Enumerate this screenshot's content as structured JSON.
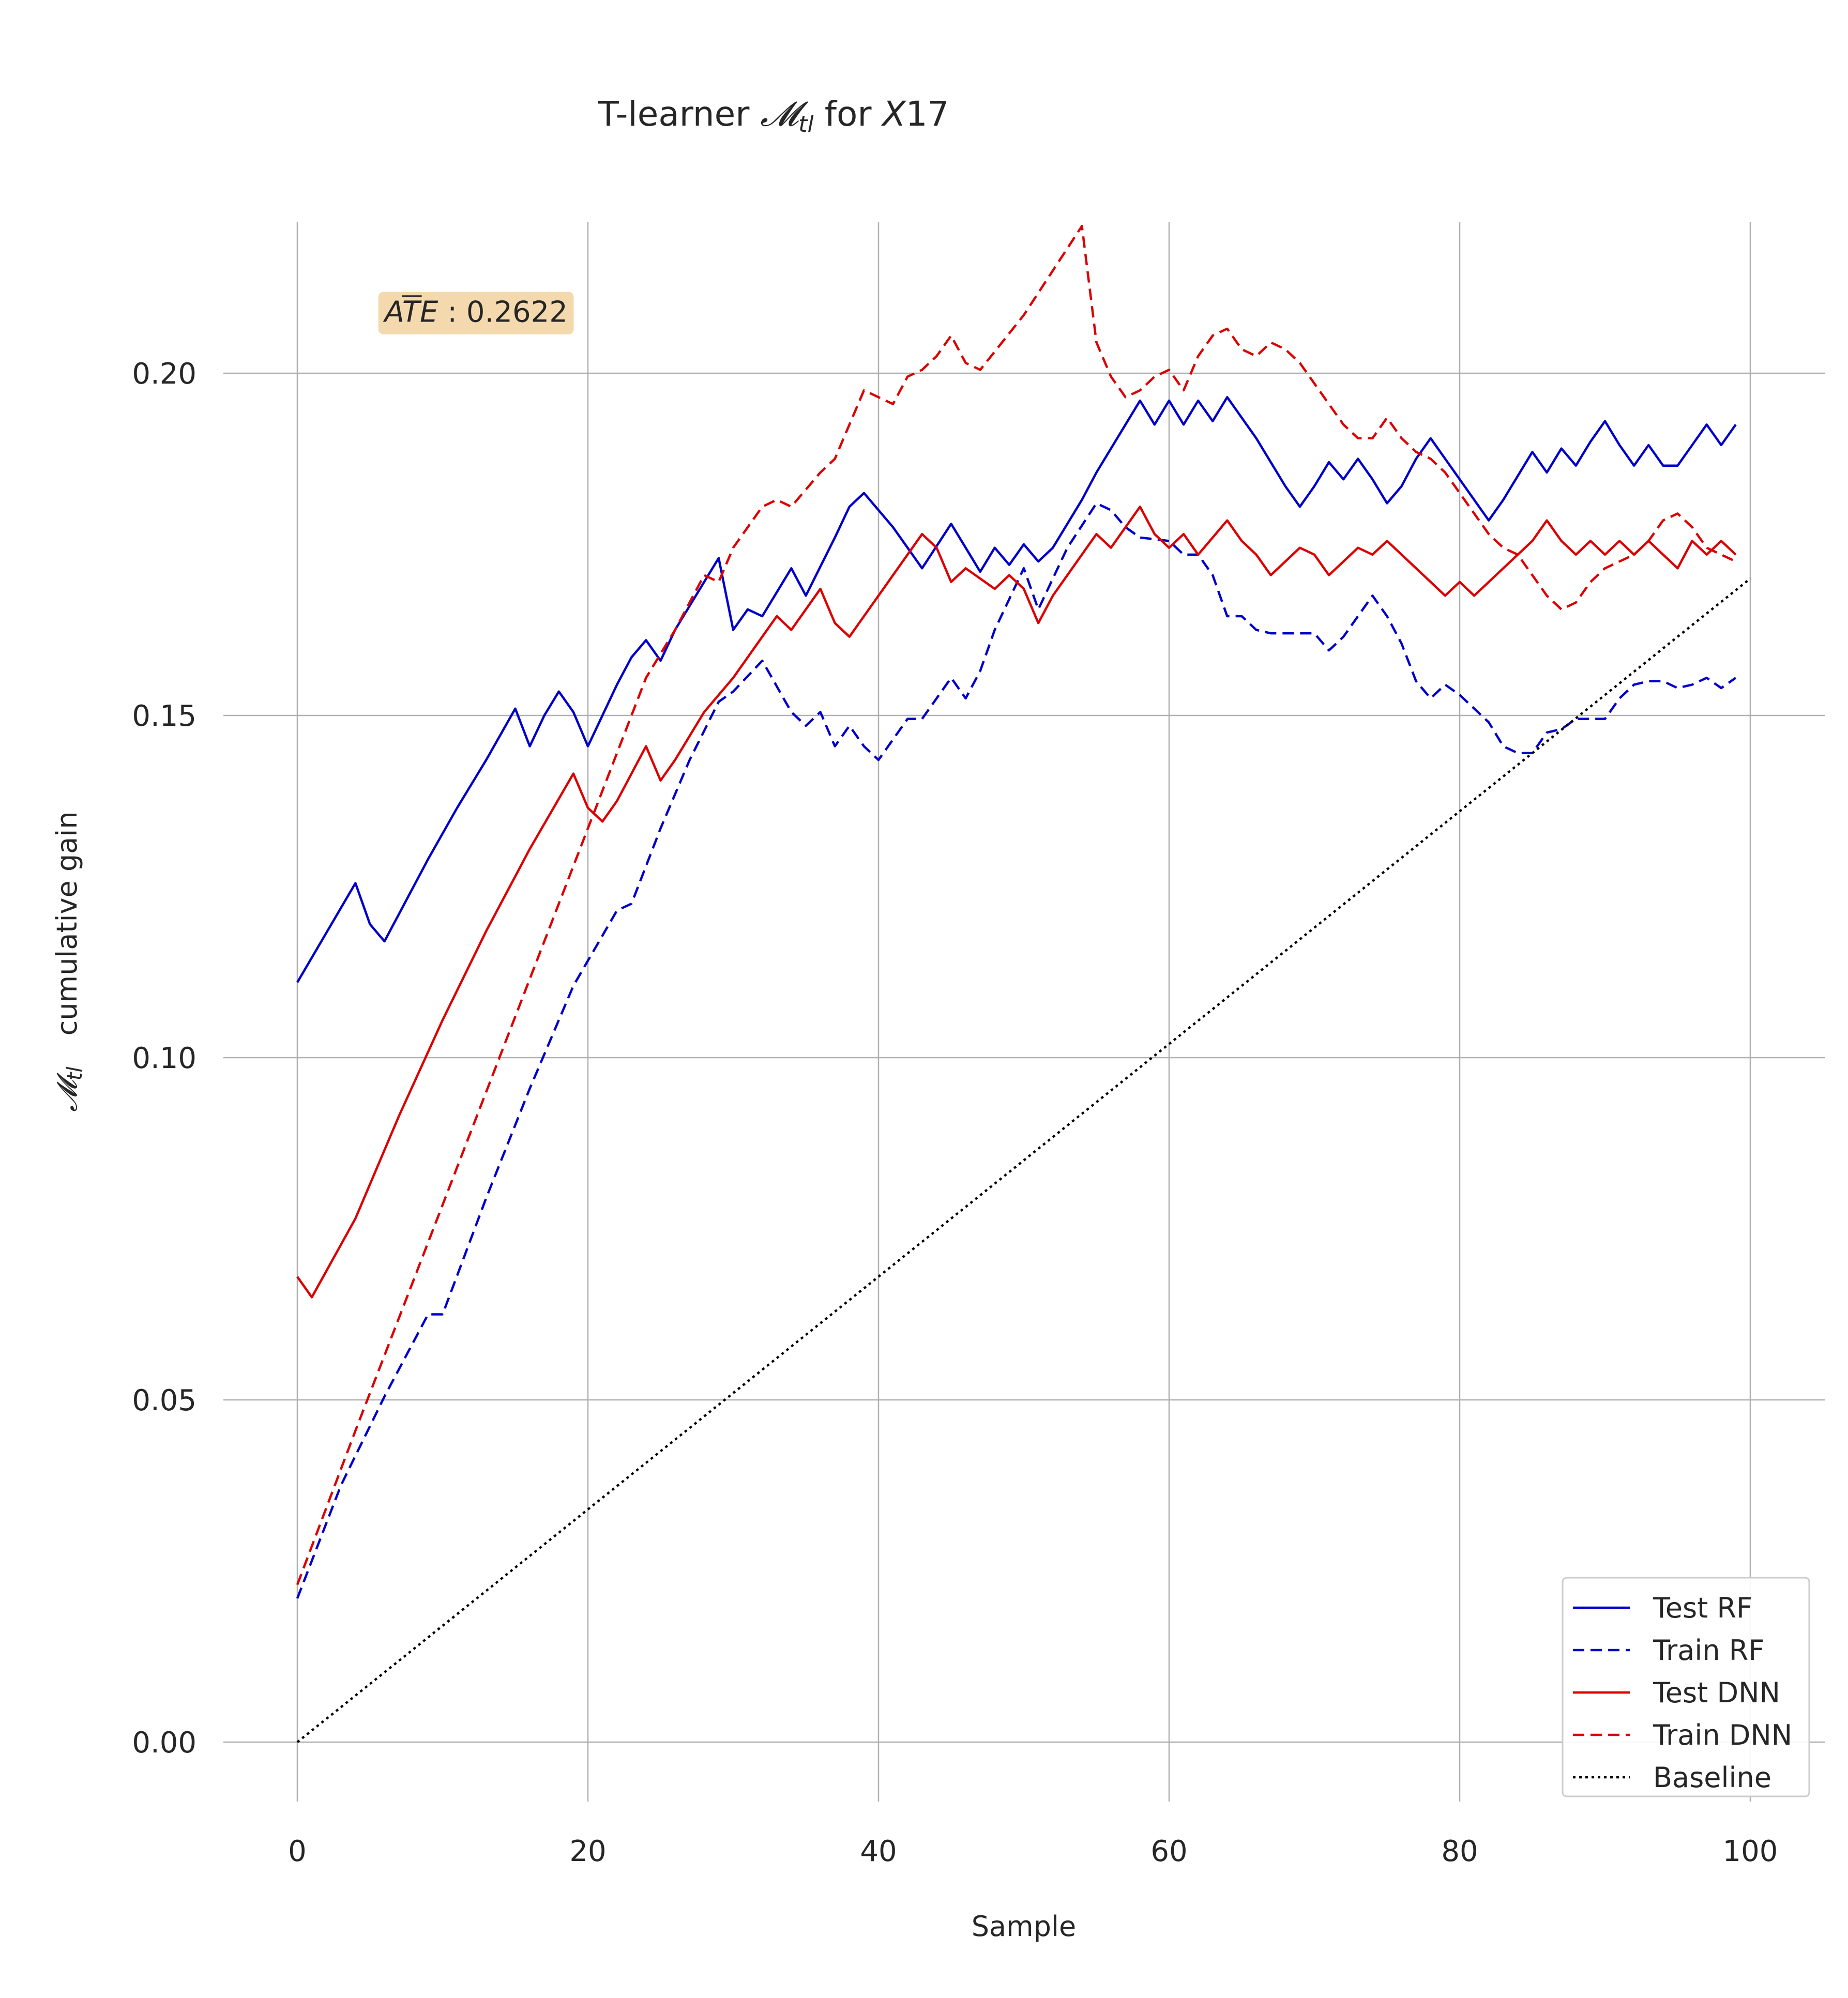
{
  "chart_data": {
    "type": "line",
    "title": "T-learner 𝓜tl for X17",
    "title_parts": {
      "a": "T-learner ",
      "m": "𝓜",
      "sub": "tl",
      "b": " for ",
      "x": "X",
      "c": "17"
    },
    "xlabel": "Sample",
    "ylabel": "𝓜tl  cumulative gain",
    "ylabel_parts": {
      "m": "𝓜",
      "sub": "tl",
      "rest": "cumulative gain"
    },
    "xlim": [
      -5,
      105
    ],
    "ylim": [
      -0.008,
      0.222
    ],
    "xticks": [
      0,
      20,
      40,
      60,
      80,
      100
    ],
    "xtick_labels": [
      "0",
      "20",
      "40",
      "60",
      "80",
      "100"
    ],
    "yticks": [
      0.0,
      0.05,
      0.1,
      0.15,
      0.2
    ],
    "ytick_labels": [
      "0.00",
      "0.05",
      "0.10",
      "0.15",
      "0.20"
    ],
    "grid": true,
    "legend_position": "lower-right",
    "annotation": {
      "label": "AT̄E : 0.2622",
      "value": "0.2622",
      "x": 6,
      "y": 0.2075,
      "background": "#f5d9ae"
    },
    "colors": {
      "blue": "#0000cc",
      "red": "#dd0000",
      "black": "#000000"
    },
    "series": [
      {
        "name": "Test RF",
        "color": "#0000cc",
        "style": "solid",
        "x": [
          0,
          4,
          5,
          6,
          9,
          11,
          13,
          15,
          16,
          17,
          18,
          19,
          20,
          22,
          23,
          24,
          25,
          26,
          28,
          29,
          30,
          31,
          32,
          34,
          35,
          37,
          38,
          39,
          40,
          41,
          42,
          43,
          45,
          46,
          47,
          48,
          49,
          50,
          51,
          52,
          54,
          55,
          57,
          58,
          59,
          60,
          61,
          62,
          63,
          64,
          66,
          68,
          69,
          70,
          71,
          72,
          73,
          74,
          75,
          76,
          77,
          78,
          80,
          82,
          83,
          84,
          85,
          86,
          87,
          88,
          89,
          90,
          91,
          92,
          93,
          94,
          95,
          96,
          97,
          98,
          99
        ],
        "y": [
          0.111,
          0.1255,
          0.1195,
          0.117,
          0.129,
          0.1365,
          0.1435,
          0.151,
          0.1455,
          0.15,
          0.1535,
          0.1505,
          0.1455,
          0.1545,
          0.1585,
          0.161,
          0.158,
          0.1625,
          0.1695,
          0.173,
          0.1625,
          0.1655,
          0.1645,
          0.1715,
          0.1675,
          0.176,
          0.1805,
          0.1825,
          0.18,
          0.1775,
          0.1745,
          0.1715,
          0.178,
          0.1745,
          0.171,
          0.1745,
          0.172,
          0.175,
          0.1725,
          0.1745,
          0.1815,
          0.1855,
          0.1925,
          0.196,
          0.1925,
          0.196,
          0.1925,
          0.196,
          0.193,
          0.1965,
          0.1905,
          0.1835,
          0.1805,
          0.1835,
          0.187,
          0.1845,
          0.1875,
          0.1845,
          0.181,
          0.1835,
          0.1875,
          0.1905,
          0.1845,
          0.1785,
          0.1815,
          0.185,
          0.1885,
          0.1855,
          0.189,
          0.1865,
          0.19,
          0.193,
          0.1895,
          0.1865,
          0.1895,
          0.1865,
          0.1865,
          0.1895,
          0.1925,
          0.1895,
          0.1925
        ]
      },
      {
        "name": "Train RF",
        "color": "#0000cc",
        "style": "dashed",
        "x": [
          0,
          3,
          6,
          9,
          10,
          13,
          16,
          19,
          22,
          23,
          25,
          27,
          29,
          30,
          32,
          34,
          35,
          36,
          37,
          38,
          39,
          40,
          42,
          43,
          45,
          46,
          47,
          48,
          49,
          50,
          51,
          52,
          53,
          55,
          56,
          57,
          58,
          60,
          61,
          62,
          63,
          64,
          65,
          66,
          67,
          68,
          70,
          71,
          72,
          74,
          75,
          76,
          77,
          78,
          79,
          80,
          82,
          83,
          84,
          85,
          86,
          87,
          88,
          89,
          90,
          91,
          92,
          93,
          94,
          95,
          96,
          97,
          98,
          99
        ],
        "y": [
          0.021,
          0.0375,
          0.0505,
          0.0625,
          0.0625,
          0.0795,
          0.0955,
          0.1105,
          0.1215,
          0.1225,
          0.1335,
          0.1435,
          0.152,
          0.1535,
          0.158,
          0.1505,
          0.1485,
          0.1505,
          0.1455,
          0.1485,
          0.1455,
          0.1435,
          0.1495,
          0.1495,
          0.1555,
          0.1525,
          0.1565,
          0.1625,
          0.167,
          0.1715,
          0.1655,
          0.17,
          0.1745,
          0.181,
          0.18,
          0.1775,
          0.176,
          0.1755,
          0.1735,
          0.1735,
          0.1705,
          0.1645,
          0.1645,
          0.1625,
          0.162,
          0.162,
          0.162,
          0.1595,
          0.1615,
          0.1675,
          0.1645,
          0.1605,
          0.155,
          0.1525,
          0.1545,
          0.153,
          0.149,
          0.1455,
          0.1445,
          0.1445,
          0.1475,
          0.148,
          0.1495,
          0.1495,
          0.1495,
          0.1525,
          0.1545,
          0.155,
          0.155,
          0.154,
          0.1545,
          0.1555,
          0.154,
          0.1555
        ]
      },
      {
        "name": "Test DNN",
        "color": "#dd0000",
        "style": "solid",
        "x": [
          0,
          1,
          4,
          7,
          10,
          13,
          16,
          19,
          20,
          21,
          22,
          24,
          25,
          26,
          28,
          30,
          32,
          33,
          34,
          35,
          36,
          37,
          38,
          39,
          40,
          41,
          43,
          44,
          45,
          46,
          48,
          49,
          50,
          51,
          52,
          53,
          55,
          56,
          58,
          59,
          60,
          61,
          62,
          64,
          65,
          66,
          67,
          68,
          69,
          70,
          71,
          72,
          73,
          74,
          75,
          76,
          77,
          78,
          79,
          80,
          81,
          82,
          83,
          85,
          86,
          87,
          88,
          89,
          90,
          91,
          92,
          93,
          94,
          95,
          96,
          97,
          98,
          99
        ],
        "y": [
          0.068,
          0.065,
          0.0765,
          0.0915,
          0.1055,
          0.1185,
          0.1305,
          0.1415,
          0.1365,
          0.1345,
          0.1375,
          0.1455,
          0.1405,
          0.1435,
          0.1505,
          0.1555,
          0.1615,
          0.1645,
          0.1625,
          0.1655,
          0.1685,
          0.1635,
          0.1615,
          0.1645,
          0.1675,
          0.1705,
          0.1765,
          0.1745,
          0.1695,
          0.1715,
          0.1685,
          0.1705,
          0.1685,
          0.1635,
          0.1675,
          0.1705,
          0.1765,
          0.1745,
          0.1805,
          0.1765,
          0.1745,
          0.1765,
          0.1735,
          0.1785,
          0.1755,
          0.1735,
          0.1705,
          0.1725,
          0.1745,
          0.1735,
          0.1705,
          0.1725,
          0.1745,
          0.1735,
          0.1755,
          0.1735,
          0.1715,
          0.1695,
          0.1675,
          0.1695,
          0.1675,
          0.1695,
          0.1715,
          0.1755,
          0.1785,
          0.1755,
          0.1735,
          0.1755,
          0.1735,
          0.1755,
          0.1735,
          0.1755,
          0.1735,
          0.1715,
          0.1755,
          0.1735,
          0.1755,
          0.1735
        ]
      },
      {
        "name": "Train DNN",
        "color": "#dd0000",
        "style": "dashed",
        "x": [
          0,
          4,
          8,
          12,
          16,
          20,
          24,
          26,
          28,
          29,
          30,
          32,
          33,
          34,
          36,
          37,
          39,
          40,
          41,
          42,
          43,
          44,
          45,
          46,
          47,
          50,
          54,
          55,
          56,
          57,
          58,
          59,
          60,
          61,
          62,
          63,
          64,
          65,
          66,
          67,
          68,
          69,
          70,
          71,
          72,
          73,
          74,
          75,
          76,
          77,
          78,
          79,
          80,
          81,
          82,
          83,
          84,
          85,
          86,
          87,
          88,
          89,
          90,
          91,
          92,
          93,
          94,
          95,
          96,
          97,
          98,
          99
        ],
        "y": [
          0.023,
          0.0455,
          0.0675,
          0.0895,
          0.1115,
          0.1335,
          0.1555,
          0.1625,
          0.1705,
          0.1695,
          0.1745,
          0.1805,
          0.1815,
          0.1805,
          0.1855,
          0.1875,
          0.1975,
          0.1965,
          0.1955,
          0.1995,
          0.2005,
          0.2025,
          0.2055,
          0.2015,
          0.2005,
          0.2085,
          0.2215,
          0.2045,
          0.1995,
          0.1965,
          0.1975,
          0.1995,
          0.2005,
          0.1975,
          0.2025,
          0.2055,
          0.2065,
          0.2035,
          0.2025,
          0.2045,
          0.2035,
          0.2015,
          0.1985,
          0.1955,
          0.1925,
          0.1905,
          0.1905,
          0.1935,
          0.1905,
          0.1885,
          0.1875,
          0.1855,
          0.1825,
          0.1795,
          0.1765,
          0.1745,
          0.1735,
          0.1705,
          0.1675,
          0.1655,
          0.1665,
          0.1695,
          0.1715,
          0.1725,
          0.1735,
          0.1755,
          0.1785,
          0.1795,
          0.1775,
          0.1745,
          0.1735,
          0.1725
        ]
      },
      {
        "name": "Baseline",
        "color": "#000000",
        "style": "dotted",
        "x": [
          0,
          100
        ],
        "y": [
          0.0,
          0.17
        ]
      }
    ]
  }
}
